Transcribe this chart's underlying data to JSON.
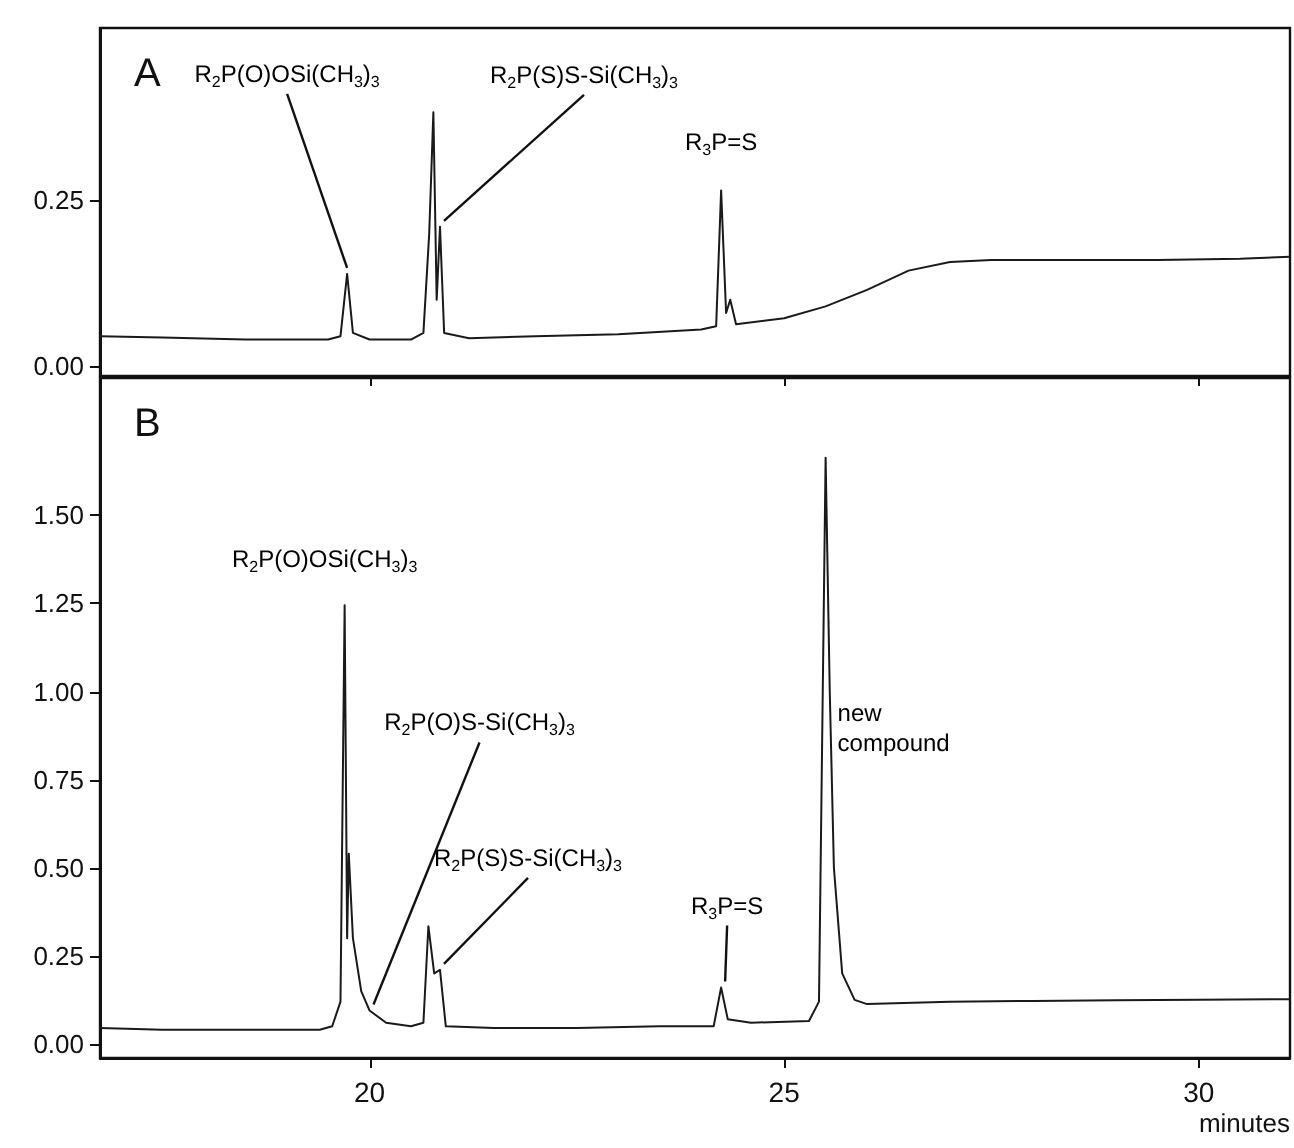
{
  "chart_data": [
    {
      "type": "line",
      "title": "A",
      "tick_labels": "y",
      "grid": false,
      "marker": "none",
      "line_style": "solid",
      "xlim": [
        16.75,
        31.1
      ],
      "xticks": [
        20,
        25,
        30
      ],
      "ylim": [
        -0.015,
        0.51
      ],
      "yticks": [
        {
          "value": 0,
          "label": "0.00"
        },
        {
          "value": 0.25,
          "label": "0.25"
        }
      ],
      "series": [
        {
          "color": "#1a1a1a",
          "x": [
            16.75,
            17.5,
            18.5,
            19.5,
            19.65,
            19.73,
            19.8,
            20.0,
            20.5,
            20.65,
            20.72,
            20.77,
            20.81,
            20.85,
            20.9,
            21.2,
            22.0,
            23.0,
            24.0,
            24.18,
            24.24,
            24.3,
            24.35,
            24.42,
            25.0,
            25.5,
            26.0,
            26.5,
            27.0,
            27.5,
            28.5,
            29.5,
            30.5,
            31.1
          ],
          "values": [
            0.045,
            0.043,
            0.04,
            0.04,
            0.045,
            0.139,
            0.05,
            0.04,
            0.04,
            0.05,
            0.2,
            0.383,
            0.1,
            0.21,
            0.05,
            0.042,
            0.045,
            0.048,
            0.055,
            0.06,
            0.265,
            0.08,
            0.1,
            0.063,
            0.072,
            0.09,
            0.115,
            0.144,
            0.157,
            0.16,
            0.16,
            0.16,
            0.162,
            0.165
          ]
        }
      ],
      "annotations": [
        {
          "text": "R$_{2}$P(O)OSi(CH$_{3}$)$_{3}$",
          "x": 19.73,
          "y": 0.139
        },
        {
          "text": "R$_{2}$P(S)S-Si(CH$_{3}$)$_{3}$",
          "x": 20.85,
          "y": 0.21
        },
        {
          "text": "R$_{3}$P=S",
          "x": 24.24,
          "y": 0.265
        }
      ]
    },
    {
      "type": "line",
      "title": "B",
      "xlabel": "minutes",
      "grid": false,
      "marker": "none",
      "line_style": "solid",
      "xlim": [
        16.75,
        31.1
      ],
      "xticks": [
        20,
        25,
        30
      ],
      "ylim": [
        -0.04,
        1.89
      ],
      "yticks": [
        {
          "value": 0,
          "label": "0.00"
        },
        {
          "value": 0.25,
          "label": "0.25"
        },
        {
          "value": 0.5,
          "label": "0.50"
        },
        {
          "value": 0.75,
          "label": "0.75"
        },
        {
          "value": 1,
          "label": "1.00"
        },
        {
          "value": 1.25,
          "label": "1.25"
        },
        {
          "value": 1.5,
          "label": "1.50"
        }
      ],
      "series": [
        {
          "color": "#1a1a1a",
          "x": [
            16.75,
            17.5,
            18.5,
            19.4,
            19.55,
            19.65,
            19.7,
            19.73,
            19.75,
            19.8,
            19.9,
            20.0,
            20.2,
            20.5,
            20.65,
            20.71,
            20.78,
            20.85,
            20.92,
            21.5,
            22.5,
            23.5,
            24.15,
            24.24,
            24.32,
            24.6,
            25.3,
            25.42,
            25.5,
            25.55,
            25.6,
            25.7,
            25.85,
            26.0,
            27.0,
            28.0,
            29.0,
            30.0,
            31.1
          ],
          "values": [
            0.045,
            0.04,
            0.04,
            0.04,
            0.05,
            0.12,
            1.245,
            0.3,
            0.54,
            0.3,
            0.15,
            0.095,
            0.06,
            0.05,
            0.06,
            0.334,
            0.2,
            0.21,
            0.05,
            0.045,
            0.045,
            0.05,
            0.05,
            0.16,
            0.07,
            0.06,
            0.065,
            0.12,
            1.664,
            1.0,
            0.5,
            0.2,
            0.125,
            0.113,
            0.12,
            0.122,
            0.124,
            0.125,
            0.127
          ]
        }
      ],
      "annotations": [
        {
          "text": "R$_{2}$P(O)OSi(CH$_{3}$)$_{3}$",
          "x": 19.7,
          "y": 1.245
        },
        {
          "text": "R$_{2}$P(O)S-Si(CH$_{3}$)$_{3}$",
          "x": 20.0,
          "y": 0.095
        },
        {
          "text": "R$_{2}$P(S)S-Si(CH$_{3}$)$_{3}$",
          "x": 20.85,
          "y": 0.21
        },
        {
          "text": "R$_{3}$P=S",
          "x": 24.24,
          "y": 0.16
        },
        {
          "text": "new compound",
          "x": 25.5,
          "y": 0.9
        }
      ]
    }
  ]
}
